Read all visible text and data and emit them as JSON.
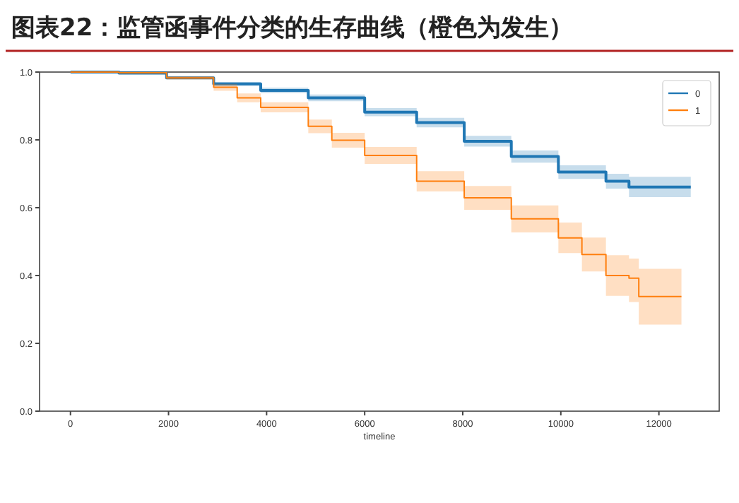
{
  "chart_data": {
    "type": "step",
    "title": "图表22：监管函事件分类的生存曲线（橙色为发生）",
    "xlabel": "timeline",
    "xlim": [
      -630,
      13230
    ],
    "xticks": [
      0,
      2000,
      4000,
      6000,
      8000,
      10000,
      12000
    ],
    "ylim": [
      0,
      1
    ],
    "yticks": [
      {
        "value": 0,
        "label": "0.0"
      },
      {
        "value": 0.2,
        "label": "0.2"
      },
      {
        "value": 0.4,
        "label": "0.4"
      },
      {
        "value": 0.6,
        "label": "0.6"
      },
      {
        "value": 0.8,
        "label": "0.8"
      },
      {
        "value": 1,
        "label": "1.0"
      }
    ],
    "grid": false,
    "legend": "top right",
    "line_style": "solid",
    "marker": "none",
    "series": [
      {
        "name": "0",
        "color": "#1f77b4",
        "x": [
          0,
          990,
          1960,
          2920,
          3880,
          4850,
          6000,
          7060,
          8030,
          8990,
          9950,
          10920,
          11390,
          12650
        ],
        "values": [
          1,
          0.997,
          0.983,
          0.965,
          0.946,
          0.924,
          0.882,
          0.851,
          0.796,
          0.751,
          0.705,
          0.678,
          0.661,
          0.661
        ],
        "lower": [
          1,
          0.996,
          0.979,
          0.959,
          0.938,
          0.914,
          0.87,
          0.837,
          0.78,
          0.733,
          0.685,
          0.656,
          0.631,
          0.631
        ],
        "upper": [
          1,
          0.998,
          0.987,
          0.971,
          0.954,
          0.934,
          0.894,
          0.865,
          0.812,
          0.769,
          0.725,
          0.7,
          0.691,
          0.691
        ]
      },
      {
        "name": "1",
        "color": "#ff7f0e",
        "x": [
          0,
          990,
          1960,
          2920,
          3400,
          3880,
          4850,
          5330,
          6000,
          7060,
          8030,
          8990,
          9950,
          10430,
          10920,
          11390,
          11590,
          12460
        ],
        "values": [
          1,
          0.998,
          0.983,
          0.955,
          0.924,
          0.896,
          0.84,
          0.799,
          0.754,
          0.678,
          0.629,
          0.567,
          0.511,
          0.462,
          0.4,
          0.392,
          0.338,
          0.338
        ],
        "lower": [
          1,
          0.997,
          0.978,
          0.945,
          0.911,
          0.881,
          0.82,
          0.777,
          0.729,
          0.648,
          0.594,
          0.527,
          0.466,
          0.412,
          0.34,
          0.322,
          0.255,
          0.255
        ],
        "upper": [
          1,
          0.999,
          0.988,
          0.965,
          0.937,
          0.911,
          0.86,
          0.821,
          0.779,
          0.708,
          0.664,
          0.607,
          0.556,
          0.512,
          0.46,
          0.45,
          0.42,
          0.42
        ]
      }
    ]
  }
}
